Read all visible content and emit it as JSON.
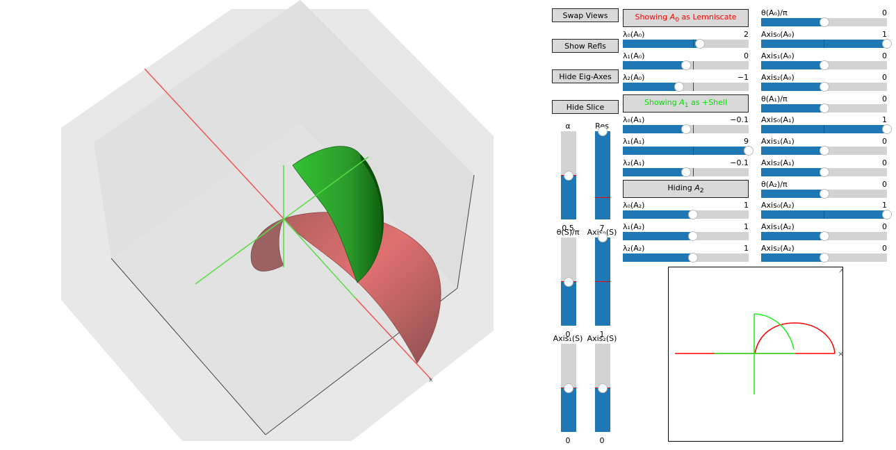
{
  "buttons": {
    "swap_views": "Swap Views",
    "show_refls": "Show Refls",
    "hide_eig_axes": "Hide Eig-Axes",
    "hide_slice": "Hide Slice"
  },
  "toggles": {
    "a0": {
      "prefix": "Showing ",
      "sym": "A",
      "sub": "0",
      "suffix": " as Lemniscate",
      "color": "#ff0000"
    },
    "a1": {
      "prefix": "Showing ",
      "sym": "A",
      "sub": "1",
      "suffix": " as +Shell",
      "color": "#00dd00"
    },
    "a2": {
      "prefix": "Hiding ",
      "sym": "A",
      "sub": "2",
      "suffix": "",
      "color": "#000000"
    }
  },
  "eigen_sliders": [
    {
      "id": "l0a0",
      "label": "λ₀(A₀)",
      "value": "2",
      "frac": 0.615,
      "init": 0.56
    },
    {
      "id": "l1a0",
      "label": "λ₁(A₀)",
      "value": "0",
      "frac": 0.505,
      "init": 0.56
    },
    {
      "id": "l2a0",
      "label": "λ₂(A₀)",
      "value": "−1",
      "frac": 0.45,
      "init": 0.56
    },
    {
      "id": "l0a1",
      "label": "λ₀(A₁)",
      "value": "−0.1",
      "frac": 0.5,
      "init": 0.56
    },
    {
      "id": "l1a1",
      "label": "λ₁(A₁)",
      "value": "9",
      "frac": 1.0,
      "init": 0.56
    },
    {
      "id": "l2a1",
      "label": "λ₂(A₁)",
      "value": "−0.1",
      "frac": 0.5,
      "init": 0.56
    },
    {
      "id": "l0a2",
      "label": "λ₀(A₂)",
      "value": "1",
      "frac": 0.56,
      "init": 0.56
    },
    {
      "id": "l1a2",
      "label": "λ₁(A₂)",
      "value": "1",
      "frac": 0.56,
      "init": 0.56
    },
    {
      "id": "l2a2",
      "label": "λ₂(A₂)",
      "value": "1",
      "frac": 0.56,
      "init": 0.56
    }
  ],
  "axis_sliders": [
    {
      "id": "ta0",
      "label": "θ(A₀)/π",
      "value": "0",
      "frac": 0.5,
      "init": 0.5
    },
    {
      "id": "x0a0",
      "label": "Axis₀(A₀)",
      "value": "1",
      "frac": 1.0,
      "init": 0.5
    },
    {
      "id": "x1a0",
      "label": "Axis₁(A₀)",
      "value": "0",
      "frac": 0.5,
      "init": 0.5
    },
    {
      "id": "x2a0",
      "label": "Axis₂(A₀)",
      "value": "0",
      "frac": 0.5,
      "init": 0.5
    },
    {
      "id": "ta1",
      "label": "θ(A₁)/π",
      "value": "0",
      "frac": 0.5,
      "init": 0.5
    },
    {
      "id": "x0a1",
      "label": "Axis₀(A₁)",
      "value": "1",
      "frac": 1.0,
      "init": 0.5
    },
    {
      "id": "x1a1",
      "label": "Axis₁(A₁)",
      "value": "0",
      "frac": 0.5,
      "init": 0.5
    },
    {
      "id": "x2a1",
      "label": "Axis₂(A₁)",
      "value": "0",
      "frac": 0.5,
      "init": 0.5
    },
    {
      "id": "ta2",
      "label": "θ(A₂)/π",
      "value": "0",
      "frac": 0.5,
      "init": 0.5
    },
    {
      "id": "x0a2",
      "label": "Axis₀(A₂)",
      "value": "1",
      "frac": 1.0,
      "init": 0.5
    },
    {
      "id": "x1a2",
      "label": "Axis₁(A₂)",
      "value": "0",
      "frac": 0.5,
      "init": 0.5
    },
    {
      "id": "x2a2",
      "label": "Axis₂(A₂)",
      "value": "0",
      "frac": 0.5,
      "init": 0.5
    }
  ],
  "slice_sliders": [
    {
      "id": "alpha",
      "label": "α",
      "value": "0.5",
      "frac": 0.5,
      "init": 0.5
    },
    {
      "id": "res",
      "label": "Res",
      "value": "7",
      "frac": 1.0,
      "init": 0.25
    },
    {
      "id": "ts",
      "label": "θ(S)/π",
      "value": "0",
      "frac": 0.5,
      "init": 0.5
    },
    {
      "id": "x0s",
      "label": "Axis₀(S)",
      "value": "1",
      "frac": 1.0,
      "init": 0.5
    },
    {
      "id": "x1s",
      "label": "Axis₁(S)",
      "value": "0",
      "frac": 0.5,
      "init": 0.5
    },
    {
      "id": "x2s",
      "label": "Axis₂(S)",
      "value": "0",
      "frac": 0.5,
      "init": 0.5
    }
  ],
  "colors": {
    "accent": "#1f77b4",
    "track": "#d3d3d3",
    "initial_marker": "#ee0000",
    "lemniscate": "#d05050",
    "shell": "#22bb22",
    "axis_red": "#ee5555",
    "axis_green": "#55dd44"
  }
}
